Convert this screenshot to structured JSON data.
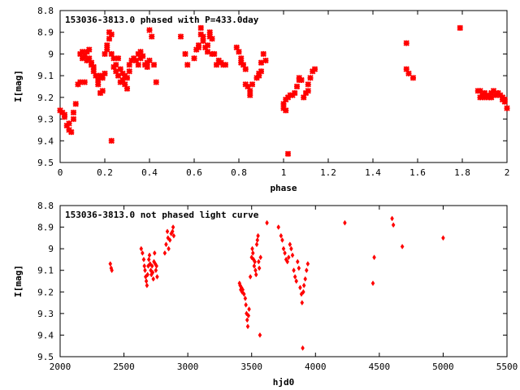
{
  "chart_data": [
    {
      "type": "scatter",
      "title": "153036-3813.0 phased with P=433.0day",
      "xlabel": "phase",
      "ylabel": "I[mag]",
      "xlim": [
        0,
        2
      ],
      "ylim": [
        8.8,
        9.5
      ],
      "y_inverted": true,
      "x_ticks": [
        0,
        0.2,
        0.4,
        0.6,
        0.8,
        1,
        1.2,
        1.4,
        1.6,
        1.8,
        2
      ],
      "y_ticks": [
        8.8,
        8.9,
        9,
        9.1,
        9.2,
        9.3,
        9.4,
        9.5
      ],
      "marker_color": "#ff0000",
      "marker": "cross",
      "grid": false,
      "points": [
        [
          0.0,
          9.26
        ],
        [
          0.01,
          9.27
        ],
        [
          0.02,
          9.28
        ],
        [
          0.02,
          9.29
        ],
        [
          0.03,
          9.33
        ],
        [
          0.04,
          9.35
        ],
        [
          0.04,
          9.32
        ],
        [
          0.05,
          9.36
        ],
        [
          0.06,
          9.3
        ],
        [
          0.06,
          9.27
        ],
        [
          0.07,
          9.23
        ],
        [
          0.08,
          9.14
        ],
        [
          0.09,
          9.13
        ],
        [
          0.09,
          9.0
        ],
        [
          0.1,
          9.02
        ],
        [
          0.1,
          8.99
        ],
        [
          0.11,
          9.01
        ],
        [
          0.11,
          9.13
        ],
        [
          0.12,
          9.03
        ],
        [
          0.12,
          8.99
        ],
        [
          0.13,
          9.02
        ],
        [
          0.13,
          8.98
        ],
        [
          0.14,
          9.05
        ],
        [
          0.14,
          9.04
        ],
        [
          0.15,
          9.06
        ],
        [
          0.15,
          9.08
        ],
        [
          0.16,
          9.1
        ],
        [
          0.17,
          9.14
        ],
        [
          0.17,
          9.12
        ],
        [
          0.18,
          9.1
        ],
        [
          0.18,
          9.18
        ],
        [
          0.19,
          9.17
        ],
        [
          0.19,
          9.11
        ],
        [
          0.2,
          9.0
        ],
        [
          0.2,
          9.09
        ],
        [
          0.21,
          8.96
        ],
        [
          0.21,
          8.98
        ],
        [
          0.22,
          8.93
        ],
        [
          0.22,
          8.9
        ],
        [
          0.23,
          8.91
        ],
        [
          0.23,
          9.0
        ],
        [
          0.23,
          9.4
        ],
        [
          0.24,
          9.02
        ],
        [
          0.24,
          9.06
        ],
        [
          0.25,
          9.05
        ],
        [
          0.25,
          9.08
        ],
        [
          0.26,
          9.1
        ],
        [
          0.26,
          9.02
        ],
        [
          0.27,
          9.07
        ],
        [
          0.27,
          9.13
        ],
        [
          0.28,
          9.09
        ],
        [
          0.28,
          9.12
        ],
        [
          0.29,
          9.14
        ],
        [
          0.29,
          9.1
        ],
        [
          0.3,
          9.16
        ],
        [
          0.3,
          9.11
        ],
        [
          0.31,
          9.05
        ],
        [
          0.31,
          9.08
        ],
        [
          0.32,
          9.03
        ],
        [
          0.33,
          9.02
        ],
        [
          0.34,
          9.03
        ],
        [
          0.35,
          9.0
        ],
        [
          0.35,
          9.05
        ],
        [
          0.36,
          8.99
        ],
        [
          0.36,
          9.02
        ],
        [
          0.37,
          9.01
        ],
        [
          0.38,
          9.05
        ],
        [
          0.39,
          9.04
        ],
        [
          0.39,
          9.06
        ],
        [
          0.4,
          9.03
        ],
        [
          0.4,
          8.89
        ],
        [
          0.41,
          8.92
        ],
        [
          0.42,
          9.05
        ],
        [
          0.43,
          9.13
        ],
        [
          0.54,
          8.92
        ],
        [
          0.56,
          9.0
        ],
        [
          0.57,
          9.05
        ],
        [
          0.6,
          9.02
        ],
        [
          0.61,
          8.98
        ],
        [
          0.62,
          8.96
        ],
        [
          0.62,
          8.97
        ],
        [
          0.63,
          8.88
        ],
        [
          0.63,
          8.91
        ],
        [
          0.64,
          8.92
        ],
        [
          0.64,
          8.94
        ],
        [
          0.65,
          8.97
        ],
        [
          0.66,
          8.96
        ],
        [
          0.66,
          8.99
        ],
        [
          0.67,
          8.92
        ],
        [
          0.67,
          8.9
        ],
        [
          0.68,
          9.0
        ],
        [
          0.68,
          8.93
        ],
        [
          0.69,
          9.0
        ],
        [
          0.7,
          9.05
        ],
        [
          0.71,
          9.03
        ],
        [
          0.72,
          9.04
        ],
        [
          0.73,
          9.05
        ],
        [
          0.74,
          9.05
        ],
        [
          0.79,
          8.97
        ],
        [
          0.8,
          8.99
        ],
        [
          0.81,
          9.02
        ],
        [
          0.81,
          9.04
        ],
        [
          0.82,
          9.05
        ],
        [
          0.83,
          9.07
        ],
        [
          0.83,
          9.14
        ],
        [
          0.84,
          9.15
        ],
        [
          0.85,
          9.17
        ],
        [
          0.85,
          9.19
        ],
        [
          0.86,
          9.14
        ],
        [
          0.88,
          9.11
        ],
        [
          0.89,
          9.1
        ],
        [
          0.89,
          9.09
        ],
        [
          0.9,
          9.08
        ],
        [
          0.9,
          9.04
        ],
        [
          0.91,
          9.0
        ],
        [
          0.92,
          9.03
        ],
        [
          1.0,
          9.23
        ],
        [
          1.0,
          9.25
        ],
        [
          1.01,
          9.26
        ],
        [
          1.01,
          9.21
        ],
        [
          1.02,
          9.2
        ],
        [
          1.02,
          9.46
        ],
        [
          1.03,
          9.19
        ],
        [
          1.04,
          9.19
        ],
        [
          1.05,
          9.18
        ],
        [
          1.06,
          9.15
        ],
        [
          1.07,
          9.11
        ],
        [
          1.07,
          9.12
        ],
        [
          1.08,
          9.12
        ],
        [
          1.09,
          9.2
        ],
        [
          1.1,
          9.18
        ],
        [
          1.11,
          9.17
        ],
        [
          1.11,
          9.14
        ],
        [
          1.12,
          9.11
        ],
        [
          1.13,
          9.08
        ],
        [
          1.14,
          9.07
        ],
        [
          1.55,
          8.95
        ],
        [
          1.55,
          9.07
        ],
        [
          1.56,
          9.09
        ],
        [
          1.58,
          9.11
        ],
        [
          1.79,
          8.88
        ],
        [
          1.87,
          9.17
        ],
        [
          1.88,
          9.17
        ],
        [
          1.88,
          9.2
        ],
        [
          1.89,
          9.19
        ],
        [
          1.9,
          9.18
        ],
        [
          1.9,
          9.2
        ],
        [
          1.91,
          9.19
        ],
        [
          1.92,
          9.2
        ],
        [
          1.93,
          9.18
        ],
        [
          1.93,
          9.2
        ],
        [
          1.94,
          9.17
        ],
        [
          1.95,
          9.19
        ],
        [
          1.96,
          9.18
        ],
        [
          1.97,
          9.19
        ],
        [
          1.98,
          9.2
        ],
        [
          1.98,
          9.21
        ],
        [
          1.99,
          9.22
        ],
        [
          1.99,
          9.21
        ],
        [
          2.0,
          9.25
        ]
      ]
    },
    {
      "type": "scatter",
      "title": "153036-3813.0 not phased light curve",
      "xlabel": "hjd0",
      "ylabel": "I[mag]",
      "xlim": [
        2000,
        5500
      ],
      "ylim": [
        8.8,
        9.5
      ],
      "y_inverted": true,
      "x_ticks": [
        2000,
        2500,
        3000,
        3500,
        4000,
        4500,
        5000,
        5500
      ],
      "y_ticks": [
        8.8,
        8.9,
        9,
        9.1,
        9.2,
        9.3,
        9.4,
        9.5
      ],
      "marker_color": "#ff0000",
      "marker": "diamond",
      "grid": false,
      "points": [
        [
          2393,
          9.07
        ],
        [
          2400,
          9.09
        ],
        [
          2405,
          9.1
        ],
        [
          2635,
          9.0
        ],
        [
          2645,
          9.02
        ],
        [
          2655,
          9.05
        ],
        [
          2660,
          9.08
        ],
        [
          2665,
          9.1
        ],
        [
          2670,
          9.13
        ],
        [
          2675,
          9.15
        ],
        [
          2680,
          9.17
        ],
        [
          2685,
          9.12
        ],
        [
          2690,
          9.08
        ],
        [
          2695,
          9.05
        ],
        [
          2700,
          9.03
        ],
        [
          2705,
          9.07
        ],
        [
          2710,
          9.1
        ],
        [
          2715,
          9.12
        ],
        [
          2720,
          9.08
        ],
        [
          2725,
          9.11
        ],
        [
          2730,
          9.14
        ],
        [
          2735,
          9.06
        ],
        [
          2740,
          9.02
        ],
        [
          2745,
          9.07
        ],
        [
          2750,
          9.1
        ],
        [
          2755,
          9.08
        ],
        [
          2760,
          9.13
        ],
        [
          2820,
          9.02
        ],
        [
          2830,
          8.98
        ],
        [
          2840,
          8.92
        ],
        [
          2845,
          8.95
        ],
        [
          2850,
          9.0
        ],
        [
          2860,
          8.96
        ],
        [
          2870,
          8.93
        ],
        [
          2880,
          8.92
        ],
        [
          2885,
          8.9
        ],
        [
          2890,
          8.94
        ],
        [
          3405,
          9.16
        ],
        [
          3410,
          9.17
        ],
        [
          3415,
          9.19
        ],
        [
          3420,
          9.18
        ],
        [
          3425,
          9.2
        ],
        [
          3430,
          9.19
        ],
        [
          3440,
          9.21
        ],
        [
          3450,
          9.23
        ],
        [
          3455,
          9.26
        ],
        [
          3460,
          9.3
        ],
        [
          3465,
          9.33
        ],
        [
          3470,
          9.36
        ],
        [
          3475,
          9.31
        ],
        [
          3480,
          9.28
        ],
        [
          3490,
          9.13
        ],
        [
          3500,
          9.04
        ],
        [
          3505,
          9.0
        ],
        [
          3510,
          9.02
        ],
        [
          3515,
          9.05
        ],
        [
          3520,
          9.08
        ],
        [
          3525,
          9.06
        ],
        [
          3530,
          9.1
        ],
        [
          3535,
          9.12
        ],
        [
          3540,
          8.98
        ],
        [
          3545,
          8.96
        ],
        [
          3550,
          8.94
        ],
        [
          3555,
          9.06
        ],
        [
          3560,
          9.09
        ],
        [
          3565,
          9.4
        ],
        [
          3570,
          9.04
        ],
        [
          3620,
          8.88
        ],
        [
          3710,
          8.9
        ],
        [
          3730,
          8.94
        ],
        [
          3740,
          8.96
        ],
        [
          3750,
          9.0
        ],
        [
          3760,
          9.02
        ],
        [
          3770,
          9.05
        ],
        [
          3780,
          9.06
        ],
        [
          3790,
          9.04
        ],
        [
          3800,
          8.98
        ],
        [
          3810,
          9.0
        ],
        [
          3820,
          9.03
        ],
        [
          3830,
          9.1
        ],
        [
          3840,
          9.13
        ],
        [
          3850,
          9.15
        ],
        [
          3860,
          9.06
        ],
        [
          3870,
          9.09
        ],
        [
          3880,
          9.18
        ],
        [
          3890,
          9.21
        ],
        [
          3895,
          9.25
        ],
        [
          3900,
          9.46
        ],
        [
          3905,
          9.2
        ],
        [
          3910,
          9.17
        ],
        [
          3920,
          9.14
        ],
        [
          3930,
          9.1
        ],
        [
          3940,
          9.07
        ],
        [
          4230,
          8.88
        ],
        [
          4450,
          9.16
        ],
        [
          4460,
          9.04
        ],
        [
          4600,
          8.86
        ],
        [
          4610,
          8.89
        ],
        [
          4680,
          8.99
        ],
        [
          5000,
          8.95
        ]
      ]
    }
  ]
}
